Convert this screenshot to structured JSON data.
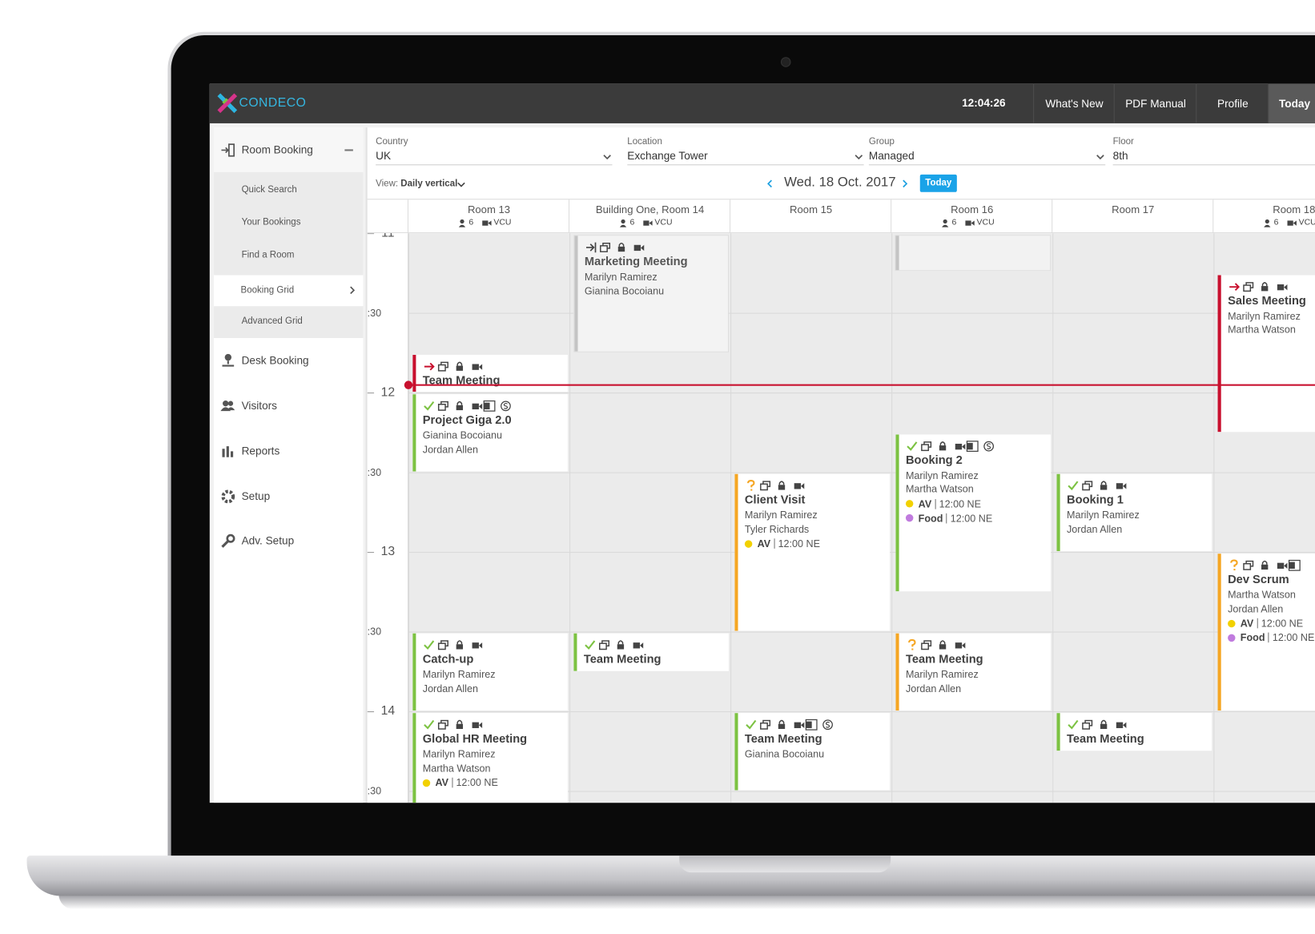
{
  "header": {
    "brand": "CONDECO",
    "clock": "12:04:26",
    "nav": [
      "What's New",
      "PDF Manual",
      "Profile",
      "Today"
    ]
  },
  "sidebar": {
    "sections": [
      {
        "label": "Room Booking",
        "items": [
          "Quick Search",
          "Your Bookings",
          "Find a Room",
          "Booking Grid",
          "Advanced Grid"
        ]
      },
      {
        "label": "Desk Booking"
      },
      {
        "label": "Visitors"
      },
      {
        "label": "Reports"
      },
      {
        "label": "Setup"
      },
      {
        "label": "Adv. Setup"
      }
    ]
  },
  "filters": [
    {
      "label": "Country",
      "value": "UK"
    },
    {
      "label": "Location",
      "value": "Exchange Tower"
    },
    {
      "label": "Group",
      "value": "Managed"
    },
    {
      "label": "Floor",
      "value": "8th"
    }
  ],
  "view": {
    "label": "View:",
    "value": "Daily vertical"
  },
  "date": "Wed. 18 Oct. 2017",
  "today_button": "Today",
  "times": [
    "11",
    ":30",
    "12",
    ":30",
    "13",
    ":30",
    "14",
    ":30"
  ],
  "rooms": [
    {
      "name": "Room 13",
      "capacity": 6,
      "equipment": "VCU",
      "bookings": [
        {
          "title": "Team Meeting",
          "color": "#c8102e",
          "attendees": []
        },
        {
          "title": "Project Giga 2.0",
          "color": "#7cc242",
          "attendees": [
            "Gianina Bocoianu",
            "Jordan Allen"
          ]
        },
        {
          "title": "Catch-up",
          "color": "#7cc242",
          "attendees": [
            "Marilyn Ramirez",
            "Jordan Allen"
          ]
        },
        {
          "title": "Global HR Meeting",
          "color": "#7cc242",
          "attendees": [
            "Marilyn Ramirez",
            "Martha Watson"
          ],
          "services": [
            {
              "name": "AV",
              "time": "12:00 NE",
              "color": "#f2d100"
            }
          ]
        }
      ]
    },
    {
      "name": "Building One, Room 14",
      "capacity": 6,
      "equipment": "VCU",
      "bookings": [
        {
          "title": "Marketing Meeting",
          "color": "#c4c4c4",
          "attendees": [
            "Marilyn Ramirez",
            "Gianina Bocoianu"
          ]
        },
        {
          "title": "Team Meeting",
          "color": "#7cc242",
          "attendees": []
        }
      ]
    },
    {
      "name": "Room 15",
      "bookings": [
        {
          "title": "Client Visit",
          "color": "#f5a623",
          "attendees": [
            "Marilyn Ramirez",
            "Tyler Richards"
          ],
          "services": [
            {
              "name": "AV",
              "time": "12:00 NE",
              "color": "#f2d100"
            }
          ]
        },
        {
          "title": "Team Meeting",
          "color": "#7cc242",
          "attendees": [
            "Gianina Bocoianu"
          ]
        }
      ]
    },
    {
      "name": "Room 16",
      "capacity": 6,
      "equipment": "VCU",
      "bookings": [
        {
          "title": "Booking 2",
          "color": "#7cc242",
          "attendees": [
            "Marilyn Ramirez",
            "Martha Watson"
          ],
          "services": [
            {
              "name": "AV",
              "time": "12:00 NE",
              "color": "#f2d100"
            },
            {
              "name": "Food",
              "time": "12:00 NE",
              "color": "#c07bde"
            }
          ]
        },
        {
          "title": "Team Meeting",
          "color": "#f5a623",
          "attendees": [
            "Marilyn Ramirez",
            "Jordan Allen"
          ]
        }
      ]
    },
    {
      "name": "Room 17",
      "bookings": [
        {
          "title": "Booking 1",
          "color": "#7cc242",
          "attendees": [
            "Marilyn Ramirez",
            "Jordan Allen"
          ]
        },
        {
          "title": "Team Meeting",
          "color": "#7cc242",
          "attendees": []
        }
      ]
    },
    {
      "name": "Room 18",
      "capacity": 6,
      "equipment": "VCU",
      "bookings": [
        {
          "title": "Sales Meeting",
          "color": "#c8102e",
          "attendees": [
            "Marilyn Ramirez",
            "Martha Watson"
          ]
        },
        {
          "title": "Dev Scrum",
          "color": "#f5a623",
          "attendees": [
            "Martha Watson",
            "Jordan Allen"
          ],
          "services": [
            {
              "name": "AV",
              "time": "12:00 NE",
              "color": "#f2d100"
            },
            {
              "name": "Food",
              "time": "12:00 NE",
              "color": "#c07bde"
            }
          ]
        }
      ]
    }
  ]
}
